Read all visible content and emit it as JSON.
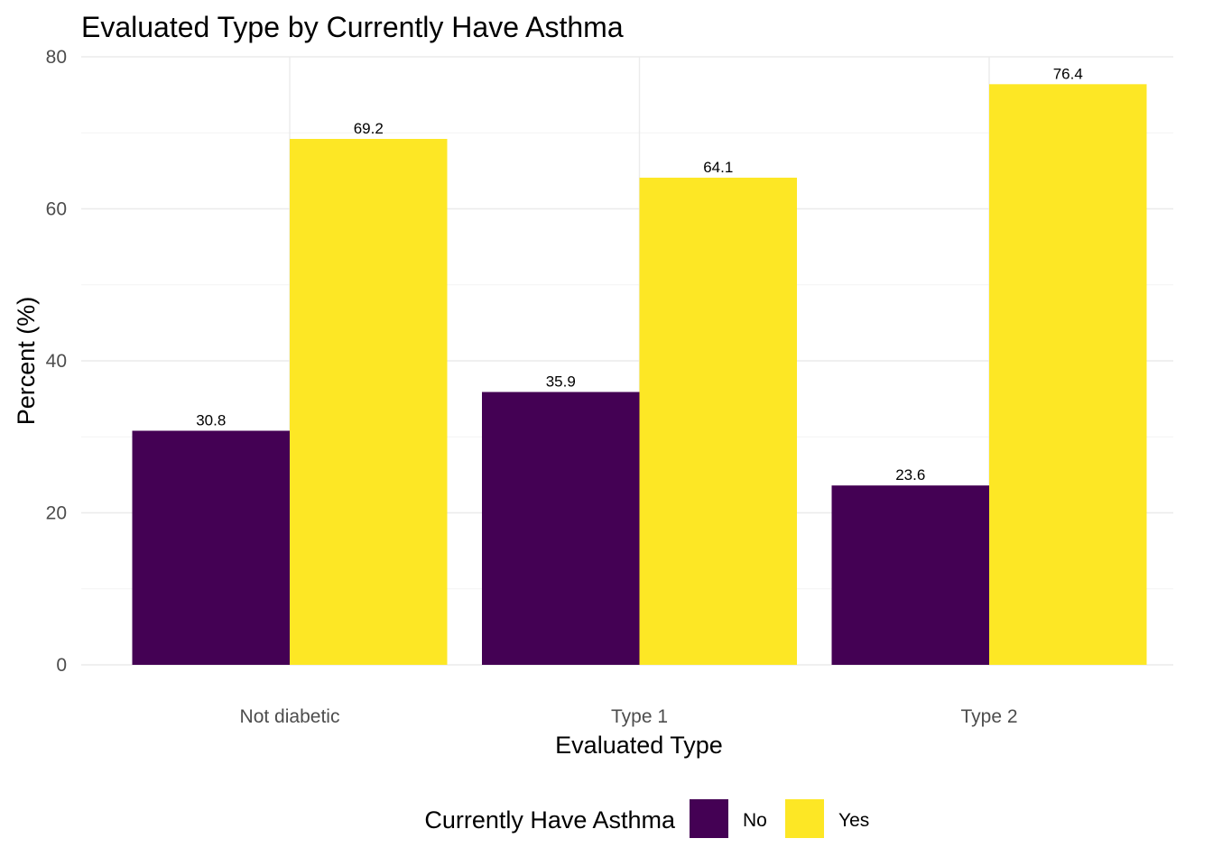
{
  "chart_data": {
    "type": "bar",
    "title": "Evaluated Type by Currently Have Asthma",
    "xlabel": "Evaluated Type",
    "ylabel": "Percent (%)",
    "categories": [
      "Not diabetic",
      "Type 1",
      "Type 2"
    ],
    "series": [
      {
        "name": "No",
        "values": [
          30.8,
          35.9,
          23.6
        ],
        "labels": [
          "30.8",
          "35.9",
          "23.6"
        ],
        "color": "#440154"
      },
      {
        "name": "Yes",
        "values": [
          69.2,
          64.1,
          76.4
        ],
        "labels": [
          "69.2",
          "64.1",
          "76.4"
        ],
        "color": "#FDE725"
      }
    ],
    "ylim": [
      0,
      80
    ],
    "yticks": [
      0,
      20,
      40,
      60,
      80
    ],
    "ytick_labels": [
      "0",
      "20",
      "40",
      "60",
      "80"
    ],
    "grid": true,
    "legend": {
      "title": "Currently Have Asthma",
      "position": "bottom"
    }
  }
}
